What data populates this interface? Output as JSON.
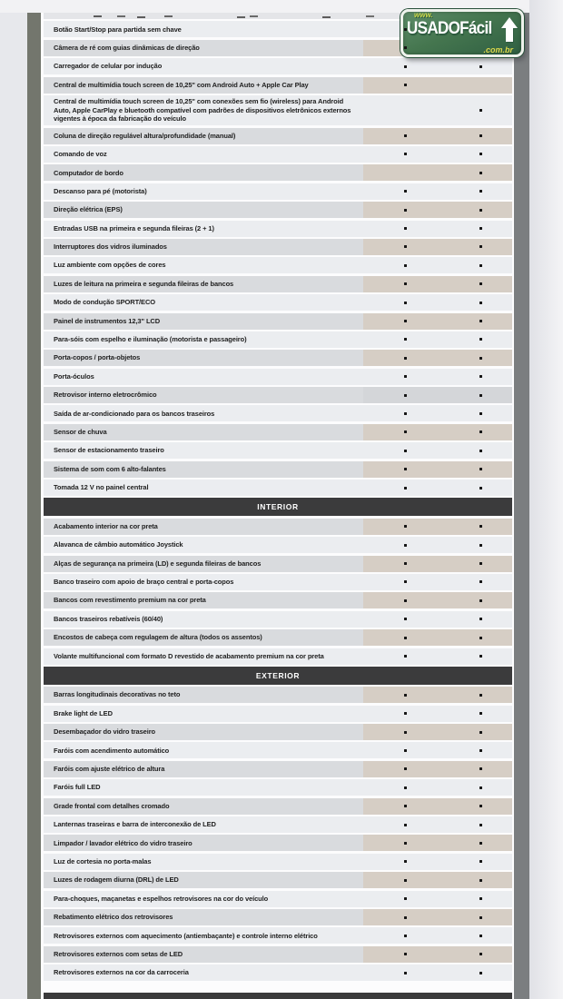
{
  "logo": {
    "www": "www.",
    "name": "USADOFácil",
    "tld": ".com.br"
  },
  "colors": {
    "logo_green": "#45764f",
    "logo_yellow": "#ded94b",
    "logo_yellow_green": "#ccd84a",
    "section_header_bg": "#3b3b3c",
    "row_light_bg": "#ebedf0",
    "row_gray_bg": "#d9dbde",
    "row_beige_bullets_bg": "#d6cec5",
    "frame_gray": "#73766d",
    "dot_color": "#151515"
  },
  "bullet_columns": 2,
  "sections": [
    {
      "header": "",
      "rows": [
        {
          "label": "",
          "clipped": true,
          "tone": "light",
          "c1": false,
          "c2": false
        },
        {
          "label": "Botão Start/Stop para partida sem chave",
          "tone": "light",
          "c1": true,
          "c2": false
        },
        {
          "label": "Câmera de ré com guias dinâmicas de direção",
          "tone": "gray",
          "c1": true,
          "c2": false
        },
        {
          "label": "Carregador de celular por indução",
          "tone": "light",
          "c1": true,
          "c2": true
        },
        {
          "label": "Central de multimídia touch screen de 10,25\" com Android Auto + Apple Car Play",
          "tone": "gray",
          "c1": true,
          "c2": false
        },
        {
          "label": "Central de multimídia touch screen de 10,25\" com conexões sem fio (wireless) para Android Auto, Apple CarPlay e bluetooth compatível com padrões de dispositivos eletrônicos externos vigentes à época da fabricação do veículo",
          "tone": "light",
          "c1": false,
          "c2": true
        },
        {
          "label": "Coluna de direção regulável altura/profundidade (manual)",
          "tone": "gray",
          "c1": true,
          "c2": true
        },
        {
          "label": "Comando de voz",
          "tone": "light",
          "c1": true,
          "c2": true
        },
        {
          "label": "Computador de bordo",
          "tone": "gray",
          "c1": false,
          "c2": true
        },
        {
          "label": "Descanso para pé (motorista)",
          "tone": "light",
          "c1": true,
          "c2": true
        },
        {
          "label": "Direção elétrica (EPS)",
          "tone": "gray",
          "c1": true,
          "c2": true
        },
        {
          "label": "Entradas USB na primeira e segunda fileiras (2 + 1)",
          "tone": "light",
          "c1": true,
          "c2": true
        },
        {
          "label": "Interruptores dos vidros iluminados",
          "tone": "gray",
          "c1": true,
          "c2": true
        },
        {
          "label": "Luz ambiente com opções de cores",
          "tone": "light",
          "c1": true,
          "c2": true
        },
        {
          "label": "Luzes de leitura na primeira e segunda fileiras de bancos",
          "tone": "gray",
          "c1": true,
          "c2": true
        },
        {
          "label": "Modo de condução SPORT/ECO",
          "tone": "light",
          "c1": true,
          "c2": true
        },
        {
          "label": "Painel de instrumentos 12,3\" LCD",
          "tone": "gray",
          "c1": true,
          "c2": true
        },
        {
          "label": "Para-sóis com espelho e iluminação (motorista e passageiro)",
          "tone": "light",
          "c1": true,
          "c2": true
        },
        {
          "label": "Porta-copos / porta-objetos",
          "tone": "gray",
          "c1": true,
          "c2": true
        },
        {
          "label": "Porta-óculos",
          "tone": "light",
          "c1": true,
          "c2": true
        },
        {
          "label": "Retrovisor interno eletrocrômico",
          "tone": "gray",
          "bullets_gray": true,
          "c1": true,
          "c2": true
        },
        {
          "label": "Saída de ar-condicionado para os bancos traseiros",
          "tone": "light",
          "c1": true,
          "c2": true
        },
        {
          "label": "Sensor de chuva",
          "tone": "gray",
          "c1": true,
          "c2": true
        },
        {
          "label": "Sensor de estacionamento traseiro",
          "tone": "light",
          "c1": true,
          "c2": true
        },
        {
          "label": "Sistema de som com 6 alto-falantes",
          "tone": "gray",
          "c1": true,
          "c2": true
        },
        {
          "label": "Tomada 12 V no painel central",
          "tone": "light",
          "c1": true,
          "c2": true
        }
      ]
    },
    {
      "header": "INTERIOR",
      "rows": [
        {
          "label": "Acabamento interior na cor preta",
          "tone": "gray",
          "c1": true,
          "c2": true
        },
        {
          "label": "Alavanca de câmbio automático Joystick",
          "tone": "light",
          "c1": true,
          "c2": true
        },
        {
          "label": "Alças de segurança na primeira (LD) e segunda fileiras de bancos",
          "tone": "gray",
          "c1": true,
          "c2": true
        },
        {
          "label": "Banco traseiro com apoio de braço central e porta-copos",
          "tone": "light",
          "c1": true,
          "c2": true
        },
        {
          "label": "Bancos com revestimento premium na cor preta",
          "tone": "gray",
          "c1": true,
          "c2": true
        },
        {
          "label": "Bancos traseiros rebatíveis (60/40)",
          "tone": "light",
          "c1": true,
          "c2": true
        },
        {
          "label": "Encostos de cabeça com regulagem de altura (todos os assentos)",
          "tone": "gray",
          "c1": true,
          "c2": true
        },
        {
          "label": "Volante multifuncional com formato D revestido de acabamento premium na cor preta",
          "tone": "light",
          "c1": true,
          "c2": true
        }
      ]
    },
    {
      "header": "EXTERIOR",
      "rows": [
        {
          "label": "Barras longitudinais decorativas no teto",
          "tone": "gray",
          "c1": true,
          "c2": true
        },
        {
          "label": "Brake light de LED",
          "tone": "light",
          "c1": true,
          "c2": true
        },
        {
          "label": "Desembaçador do vidro traseiro",
          "tone": "gray",
          "c1": true,
          "c2": true
        },
        {
          "label": "Faróis com acendimento automático",
          "tone": "light",
          "c1": true,
          "c2": true
        },
        {
          "label": "Faróis com ajuste elétrico de altura",
          "tone": "gray",
          "c1": true,
          "c2": true
        },
        {
          "label": "Faróis full LED",
          "tone": "light",
          "c1": true,
          "c2": true
        },
        {
          "label": "Grade frontal com detalhes cromado",
          "tone": "gray",
          "c1": true,
          "c2": true
        },
        {
          "label": "Lanternas traseiras e barra de interconexão de LED",
          "tone": "light",
          "c1": true,
          "c2": true
        },
        {
          "label": "Limpador / lavador elétrico do vidro traseiro",
          "tone": "gray",
          "c1": true,
          "c2": true
        },
        {
          "label": "Luz de cortesia no porta-malas",
          "tone": "light",
          "c1": true,
          "c2": true
        },
        {
          "label": "Luzes de rodagem diurna (DRL) de LED",
          "tone": "gray",
          "c1": true,
          "c2": true
        },
        {
          "label": "Para-choques, maçanetas e espelhos retrovisores na cor do veículo",
          "tone": "light",
          "c1": true,
          "c2": true
        },
        {
          "label": "Rebatimento elétrico dos retrovisores",
          "tone": "gray",
          "c1": true,
          "c2": true
        },
        {
          "label": "Retrovisores externos com aquecimento (antiembaçante) e controle interno elétrico",
          "tone": "light",
          "c1": true,
          "c2": true
        },
        {
          "label": "Retrovisores externos com setas de LED",
          "tone": "gray",
          "c1": true,
          "c2": true
        },
        {
          "label": "Retrovisores externos na cor da carroceria",
          "tone": "light",
          "c1": true,
          "c2": true
        }
      ]
    }
  ],
  "bottom_partial_header": {
    "visible": true,
    "label": ""
  }
}
